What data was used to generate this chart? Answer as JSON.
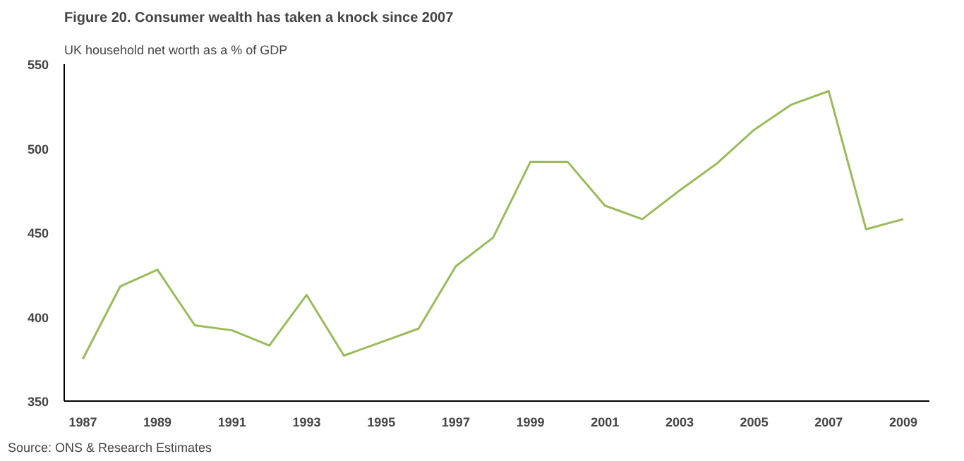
{
  "chart_data": {
    "type": "line",
    "title": "Figure 20. Consumer wealth has taken a knock since 2007",
    "subtitle": "UK household net worth as a % of GDP",
    "x": [
      1987,
      1988,
      1989,
      1990,
      1991,
      1992,
      1993,
      1994,
      1995,
      1996,
      1997,
      1998,
      1999,
      2000,
      2001,
      2002,
      2003,
      2004,
      2005,
      2006,
      2007,
      2008,
      2009
    ],
    "series": [
      {
        "color": "#9bbb59",
        "values": [
          375,
          418,
          428,
          395,
          392,
          383,
          413,
          377,
          385,
          393,
          430,
          447,
          492,
          492,
          466,
          458,
          475,
          491,
          511,
          526,
          534,
          452,
          458
        ]
      }
    ],
    "xlim": [
      1986.5,
      2009.7
    ],
    "xticks": [
      1987,
      1989,
      1991,
      1993,
      1995,
      1997,
      1999,
      2001,
      2003,
      2005,
      2007,
      2009
    ],
    "ylim": [
      350,
      550
    ],
    "yticks": [
      350,
      400,
      450,
      500,
      550
    ],
    "grid": false,
    "annotations": [
      "Source: ONS & Research Estimates"
    ]
  }
}
